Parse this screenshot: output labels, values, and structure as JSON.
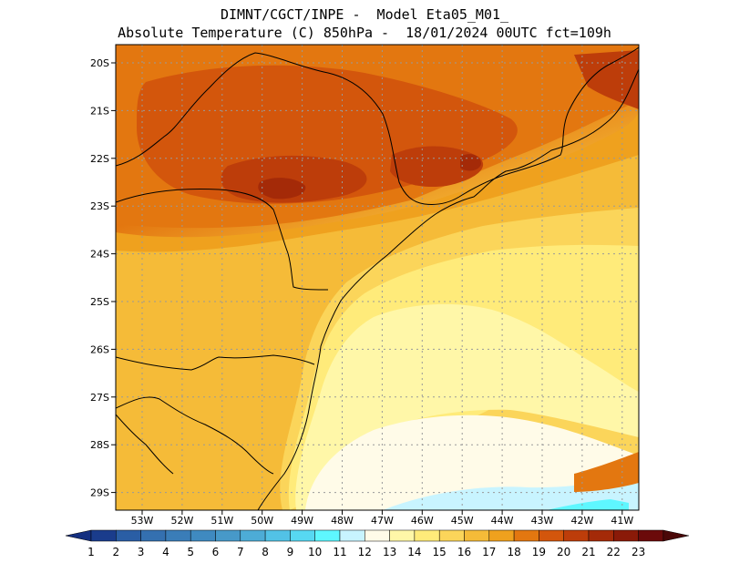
{
  "header": {
    "line1": "DIMNT/CGCT/INPE -  Model Eta05_M01_",
    "line2": "Absolute Temperature (C) 850hPa -  18/01/2024 00UTC fct=109h"
  },
  "axes": {
    "lat_labels": [
      "20S",
      "21S",
      "22S",
      "23S",
      "24S",
      "25S",
      "26S",
      "27S",
      "28S",
      "29S"
    ],
    "lon_labels": [
      "53W",
      "52W",
      "51W",
      "50W",
      "49W",
      "48W",
      "47W",
      "46W",
      "45W",
      "44W",
      "43W",
      "42W",
      "41W"
    ]
  },
  "colorbar": {
    "labels": [
      "1",
      "2",
      "3",
      "4",
      "5",
      "6",
      "7",
      "8",
      "9",
      "10",
      "11",
      "12",
      "13",
      "14",
      "15",
      "16",
      "17",
      "18",
      "19",
      "20",
      "21",
      "22",
      "23"
    ],
    "colors": [
      "#1a3c8c",
      "#2a5ea5",
      "#3470b0",
      "#3a7db8",
      "#3f8ac0",
      "#4799c9",
      "#4dacd6",
      "#52c2e6",
      "#57d8f2",
      "#5ef7ff",
      "#c8f4ff",
      "#fffbe8",
      "#fff7a8",
      "#ffeb7a",
      "#fbd55a",
      "#f5bb38",
      "#efa11e",
      "#e37710",
      "#d3560c",
      "#bd3d0a",
      "#a42a08",
      "#8a1a08",
      "#6b0a0a"
    ],
    "low_arrow_color": "#142f80",
    "high_arrow_color": "#4a0808"
  }
}
